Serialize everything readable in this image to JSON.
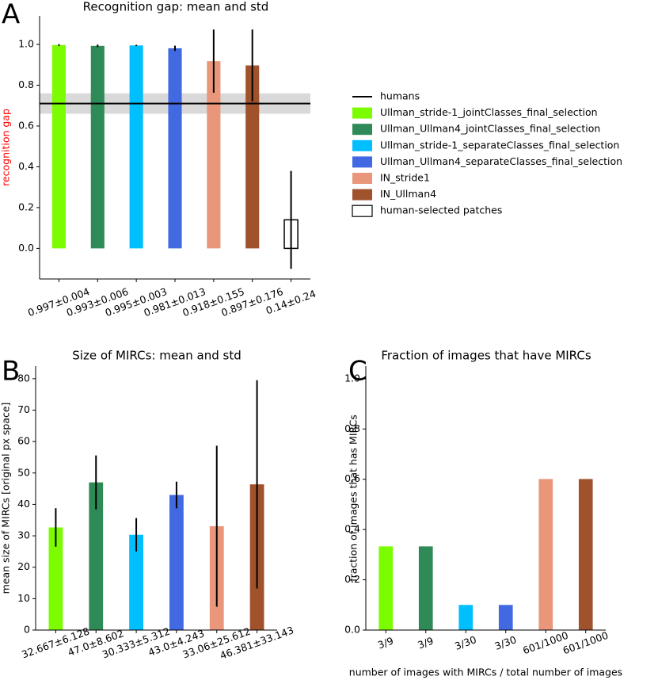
{
  "chart_data": [
    {
      "type": "bar",
      "panel": "A",
      "title": "Recognition gap: mean and std",
      "ylabel": "recognition gap",
      "ylabel_color": "red",
      "categories": [
        "0.997±0.004",
        "0.993±0.006",
        "0.995±0.003",
        "0.981±0.013",
        "0.918±0.155",
        "0.897±0.176",
        "0.14±0.24"
      ],
      "values": [
        0.997,
        0.993,
        0.995,
        0.981,
        0.918,
        0.897,
        0.14
      ],
      "errors": [
        0.004,
        0.006,
        0.003,
        0.013,
        0.155,
        0.176,
        0.24
      ],
      "names": [
        "Ullman_stride-1_jointClasses_final_selection",
        "Ullman_Ullman4_jointClasses_final_selection",
        "Ullman_stride-1_separateClasses_final_selection",
        "Ullman_Ullman4_separateClasses_final_selection",
        "IN_stride1",
        "IN_Ullman4",
        "human-selected patches"
      ],
      "colors": [
        "#7cfc00",
        "#2e8b57",
        "#00bfff",
        "#4169e1",
        "#e9967a",
        "#a0522d",
        "#ffffff"
      ],
      "edgecolors": [
        null,
        null,
        null,
        null,
        null,
        null,
        "#000000"
      ],
      "reference": {
        "name": "humans",
        "value": 0.71,
        "lower": 0.66,
        "upper": 0.76,
        "color": "#000000",
        "band_color": "#d9d9d9"
      },
      "ylim": [
        -0.15,
        1.14
      ],
      "yticks": [
        {
          "value": 0,
          "label": "0.0"
        },
        {
          "value": 0.2,
          "label": "0.2"
        },
        {
          "value": 0.4,
          "label": "0.4"
        },
        {
          "value": 0.6,
          "label": "0.6"
        },
        {
          "value": 0.8,
          "label": "0.8"
        },
        {
          "value": 1,
          "label": "1.0"
        }
      ],
      "legend": "right"
    },
    {
      "type": "bar",
      "panel": "B",
      "title": "Size of MIRCs: mean and std",
      "ylabel": "mean size of MIRCs [original px space]",
      "categories": [
        "32.667±6.128",
        "47.0±8.602",
        "30.333±5.312",
        "43.0±4.243",
        "33.06±25.612",
        "46.381±33.143"
      ],
      "values": [
        32.667,
        47.0,
        30.333,
        43.0,
        33.06,
        46.381
      ],
      "errors": [
        6.128,
        8.602,
        5.312,
        4.243,
        25.612,
        33.143
      ],
      "colors": [
        "#7cfc00",
        "#2e8b57",
        "#00bfff",
        "#4169e1",
        "#e9967a",
        "#a0522d"
      ],
      "ylim": [
        0,
        84
      ],
      "yticks": [
        0,
        10,
        20,
        30,
        40,
        50,
        60,
        70,
        80
      ]
    },
    {
      "type": "bar",
      "panel": "C",
      "title": "Fraction of images that have MIRCs",
      "ylabel": "fraction of images that has MIRCs",
      "xlabel": "number of images with MIRCs / total number of images",
      "categories": [
        "3/9",
        "3/9",
        "3/30",
        "3/30",
        "601/1000",
        "601/1000"
      ],
      "values": [
        0.333,
        0.333,
        0.1,
        0.1,
        0.601,
        0.601
      ],
      "colors": [
        "#7cfc00",
        "#2e8b57",
        "#00bfff",
        "#4169e1",
        "#e9967a",
        "#a0522d"
      ],
      "ylim": [
        0,
        1.05
      ],
      "yticks": [
        {
          "value": 0,
          "label": "0.0"
        },
        {
          "value": 0.2,
          "label": "0.2"
        },
        {
          "value": 0.4,
          "label": "0.4"
        },
        {
          "value": 0.6,
          "label": "0.6"
        },
        {
          "value": 0.8,
          "label": "0.8"
        },
        {
          "value": 1,
          "label": "1.0"
        }
      ]
    }
  ]
}
